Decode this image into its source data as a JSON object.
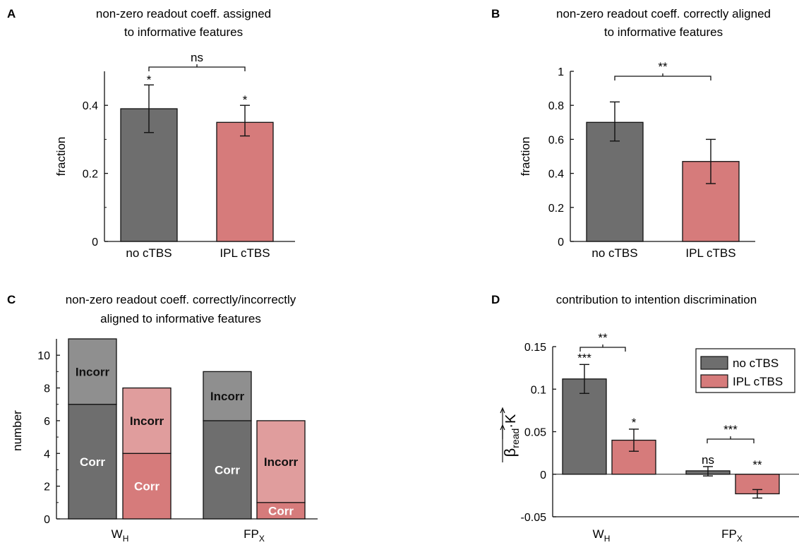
{
  "panels": {
    "A": {
      "letter": "A",
      "title_line1": "non-zero readout coeff. assigned",
      "title_line2": "to informative features"
    },
    "B": {
      "letter": "B",
      "title_line1": "non-zero readout coeff. correctly aligned",
      "title_line2": "to informative features"
    },
    "C": {
      "letter": "C",
      "title_line1": "non-zero readout coeff. correctly/incorrectly",
      "title_line2": "aligned to informative features"
    },
    "D": {
      "letter": "D",
      "title_line1": "contribution to intention discrimination",
      "title_line2": ""
    }
  },
  "colors": {
    "no_ctbs": "#6e6e6e",
    "ipl_ctbs": "#d67b7b",
    "incorr_no": "#8f8f8f",
    "incorr_ipl": "#e09d9d"
  },
  "chart_data": [
    {
      "id": "A",
      "type": "bar",
      "title": "non-zero readout coeff. assigned to informative features",
      "xlabel": "",
      "ylabel": "fraction",
      "categories": [
        "no cTBS",
        "IPL cTBS"
      ],
      "values": [
        0.39,
        0.35
      ],
      "errors": [
        [
          0.32,
          0.46
        ],
        [
          0.31,
          0.4
        ]
      ],
      "ylim": [
        0,
        0.5
      ],
      "yticks": [
        0,
        0.2,
        0.4
      ],
      "ytick_labels": [
        "0",
        "0.2",
        "0.4"
      ],
      "bar_annotations": [
        "*",
        "*"
      ],
      "comparison": {
        "label": "ns"
      }
    },
    {
      "id": "B",
      "type": "bar",
      "title": "non-zero readout coeff. correctly aligned to informative features",
      "xlabel": "",
      "ylabel": "fraction",
      "categories": [
        "no cTBS",
        "IPL cTBS"
      ],
      "values": [
        0.7,
        0.47
      ],
      "errors": [
        [
          0.59,
          0.82
        ],
        [
          0.34,
          0.6
        ]
      ],
      "ylim": [
        0,
        1
      ],
      "yticks": [
        0,
        0.2,
        0.4,
        0.6,
        0.8,
        1
      ],
      "ytick_labels": [
        "0",
        "0.2",
        "0.4",
        "0.6",
        "0.8",
        "1"
      ],
      "bar_annotations": [
        "",
        ""
      ],
      "comparison": {
        "label": "**"
      }
    },
    {
      "id": "C",
      "type": "bar",
      "title": "non-zero readout coeff. correctly/incorrectly aligned to informative features",
      "xlabel": "",
      "ylabel": "number",
      "categories": [
        "W_H",
        "FP_X"
      ],
      "category_main": [
        "W",
        "FP"
      ],
      "category_sub": [
        "H",
        "X"
      ],
      "stacked": true,
      "series": [
        {
          "group": "no cTBS",
          "corr": [
            7,
            6
          ],
          "incorr": [
            4,
            3
          ]
        },
        {
          "group": "IPL cTBS",
          "corr": [
            4,
            1
          ],
          "incorr": [
            4,
            5
          ]
        }
      ],
      "segment_labels": {
        "corr": "Corr",
        "incorr": "Incorr"
      },
      "ylim": [
        0,
        11
      ],
      "yticks": [
        0,
        2,
        4,
        6,
        8,
        10
      ],
      "ytick_labels": [
        "0",
        "2",
        "4",
        "6",
        "8",
        "10"
      ]
    },
    {
      "id": "D",
      "type": "bar",
      "title": "contribution to intention discrimination",
      "xlabel": "",
      "ylabel_main": "β",
      "ylabel_sub": "read",
      "ylabel_tail": "·K",
      "categories": [
        "W_H",
        "FP_X"
      ],
      "category_main": [
        "W",
        "FP"
      ],
      "category_sub": [
        "H",
        "X"
      ],
      "series": [
        {
          "name": "no cTBS",
          "values": [
            0.112,
            0.004
          ],
          "errors": [
            [
              0.095,
              0.129
            ],
            [
              -0.002,
              0.009
            ]
          ],
          "annotations": [
            "***",
            "ns"
          ]
        },
        {
          "name": "IPL cTBS",
          "values": [
            0.04,
            -0.023
          ],
          "errors": [
            [
              0.027,
              0.053
            ],
            [
              -0.028,
              -0.018
            ]
          ],
          "annotations": [
            "*",
            "**"
          ]
        }
      ],
      "comparisons": [
        "**",
        "***"
      ],
      "ylim": [
        -0.05,
        0.15
      ],
      "yticks": [
        -0.05,
        0,
        0.05,
        0.1,
        0.15
      ],
      "ytick_labels": [
        "-0.05",
        "0",
        "0.05",
        "0.1",
        "0.15"
      ],
      "legend": [
        "no cTBS",
        "IPL cTBS"
      ],
      "legend_position": "top-right"
    }
  ]
}
